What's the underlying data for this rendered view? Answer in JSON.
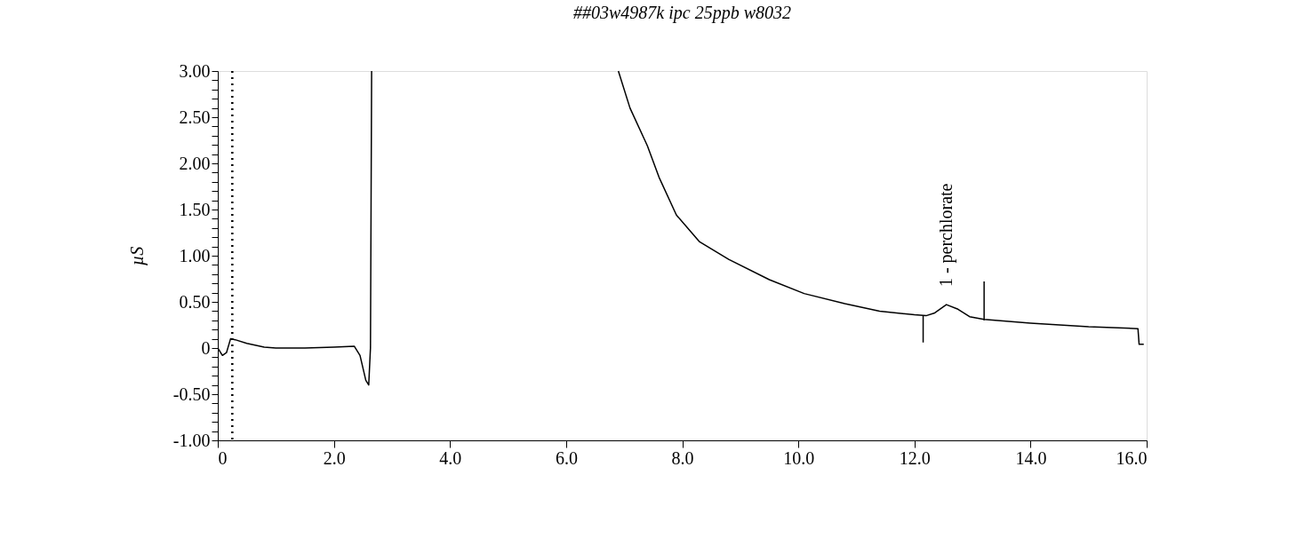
{
  "chart_data": {
    "type": "line",
    "title": "##03w4987k  ipc 25ppb w8032",
    "ylabel": "µS",
    "xlim": [
      0,
      16
    ],
    "ylim": [
      -1,
      3
    ],
    "xticks": [
      0,
      {
        "value": 2,
        "label": "2.0"
      },
      {
        "value": 4,
        "label": "4.0"
      },
      {
        "value": 6,
        "label": "6.0"
      },
      {
        "value": 8,
        "label": "8.0"
      },
      {
        "value": 10,
        "label": "10.0"
      },
      {
        "value": 12,
        "label": "12.0"
      },
      {
        "value": 14,
        "label": "14.0"
      },
      {
        "value": 16,
        "label": "16.0"
      }
    ],
    "yticks": [
      {
        "value": -1,
        "label": "-1.00"
      },
      {
        "value": -0.9,
        "label": null
      },
      {
        "value": -0.8,
        "label": null
      },
      {
        "value": -0.7,
        "label": null
      },
      {
        "value": -0.6,
        "label": null
      },
      {
        "value": -0.5,
        "label": "-0.50"
      },
      {
        "value": -0.4,
        "label": null
      },
      {
        "value": -0.3,
        "label": null
      },
      {
        "value": -0.2,
        "label": null
      },
      {
        "value": -0.1,
        "label": null
      },
      0,
      {
        "value": 0.1,
        "label": null
      },
      {
        "value": 0.2,
        "label": null
      },
      {
        "value": 0.3,
        "label": null
      },
      {
        "value": 0.4,
        "label": null
      },
      {
        "value": 0.5,
        "label": "0.50"
      },
      {
        "value": 0.6,
        "label": null
      },
      {
        "value": 0.7,
        "label": null
      },
      {
        "value": 0.8,
        "label": null
      },
      {
        "value": 0.9,
        "label": null
      },
      {
        "value": 1,
        "label": "1.00"
      },
      {
        "value": 1.1,
        "label": null
      },
      {
        "value": 1.2,
        "label": null
      },
      {
        "value": 1.3,
        "label": null
      },
      {
        "value": 1.4,
        "label": null
      },
      {
        "value": 1.5,
        "label": "1.50"
      },
      {
        "value": 1.6,
        "label": null
      },
      {
        "value": 1.7,
        "label": null
      },
      {
        "value": 1.8,
        "label": null
      },
      {
        "value": 1.9,
        "label": null
      },
      {
        "value": 2,
        "label": "2.00"
      },
      {
        "value": 2.1,
        "label": null
      },
      {
        "value": 2.2,
        "label": null
      },
      {
        "value": 2.3,
        "label": null
      },
      {
        "value": 2.4,
        "label": null
      },
      {
        "value": 2.5,
        "label": "2.50"
      },
      {
        "value": 2.6,
        "label": null
      },
      {
        "value": 2.7,
        "label": null
      },
      {
        "value": 2.8,
        "label": null
      },
      {
        "value": 2.9,
        "label": null
      },
      {
        "value": 3,
        "label": "3.00"
      }
    ],
    "marker": "none",
    "line_style": "solid",
    "series": [
      {
        "color": "#000000",
        "x": [
          0,
          0.08,
          0.15,
          0.22,
          0.3,
          0.5,
          0.8,
          1.0,
          1.5,
          2.0,
          2.35,
          2.45,
          2.55,
          2.6,
          2.63,
          2.65,
          4.0,
          6.9,
          7.1,
          7.4,
          7.6,
          7.9,
          8.3,
          8.8,
          9.5,
          10.1,
          10.8,
          11.4,
          12.0,
          12.2,
          12.35,
          12.55,
          12.75,
          12.95,
          13.2,
          14.0,
          15.0,
          15.85,
          15.87,
          15.95
        ],
        "values": [
          0,
          -0.08,
          -0.05,
          0.1,
          0.09,
          0.05,
          0.01,
          0,
          0,
          0.01,
          0.02,
          -0.08,
          -0.35,
          -0.4,
          0,
          3.0,
          null,
          3.0,
          2.6,
          2.19,
          1.85,
          1.44,
          1.15,
          0.96,
          0.74,
          0.59,
          0.48,
          0.4,
          0.36,
          0.35,
          0.38,
          0.47,
          0.42,
          0.34,
          0.31,
          0.27,
          0.23,
          0.21,
          0.04,
          0.04
        ]
      },
      {
        "color": "#000000",
        "x": [
          12.15,
          12.15
        ],
        "values": [
          0.35,
          0.06
        ]
      },
      {
        "color": "#000000",
        "x": [
          13.2,
          13.2
        ],
        "values": [
          0.3,
          0.72
        ]
      }
    ],
    "ref_lines": [
      {
        "axis": "x",
        "value": 0.25,
        "line_style": "dotted",
        "color": "#000000"
      }
    ],
    "annotations": [
      {
        "text": "1 - perchlorate",
        "x": 12.55,
        "y": 0.47
      }
    ]
  }
}
